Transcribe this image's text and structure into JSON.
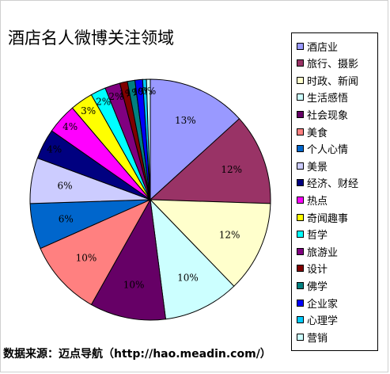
{
  "chart_data": {
    "type": "pie",
    "title": "酒店名人微博关注领域",
    "slices": [
      {
        "label": "酒店业",
        "value": 13,
        "display": "13%",
        "color": "#9999ff"
      },
      {
        "label": "旅行、摄影",
        "value": 12,
        "display": "12%",
        "color": "#993366"
      },
      {
        "label": "时政、新闻",
        "value": 12,
        "display": "12%",
        "color": "#ffffcc"
      },
      {
        "label": "生活感悟",
        "value": 10,
        "display": "10%",
        "color": "#ccffff"
      },
      {
        "label": "社会现象",
        "value": 10,
        "display": "10%",
        "color": "#660066"
      },
      {
        "label": "美食",
        "value": 10,
        "display": "10%",
        "color": "#ff8080"
      },
      {
        "label": "个人心情",
        "value": 6,
        "display": "6%",
        "color": "#0066cc"
      },
      {
        "label": "美景",
        "value": 6,
        "display": "6%",
        "color": "#ccccff"
      },
      {
        "label": "经济、财经",
        "value": 4,
        "display": "4%",
        "color": "#000080"
      },
      {
        "label": "热点",
        "value": 4,
        "display": "4%",
        "color": "#ff00ff"
      },
      {
        "label": "奇闻趣事",
        "value": 3,
        "display": "3%",
        "color": "#ffff00"
      },
      {
        "label": "哲学",
        "value": 2,
        "display": "2%",
        "color": "#00ffff"
      },
      {
        "label": "旅游业",
        "value": 2,
        "display": "2%",
        "color": "#800080"
      },
      {
        "label": "设计",
        "value": 1,
        "display": "1%",
        "color": "#800000"
      },
      {
        "label": "佛学",
        "value": 1,
        "display": "1%",
        "color": "#008080"
      },
      {
        "label": "企业家",
        "value": 1,
        "display": "1%",
        "color": "#0000ff"
      },
      {
        "label": "心理学",
        "value": 0.5,
        "display": "0%",
        "color": "#00ccff"
      },
      {
        "label": "营销",
        "value": 0.5,
        "display": "0%",
        "color": "#ccffff"
      }
    ],
    "legend_position": "right"
  },
  "source_text": "数据来源：迈点导航（http://hao.meadin.com/）"
}
